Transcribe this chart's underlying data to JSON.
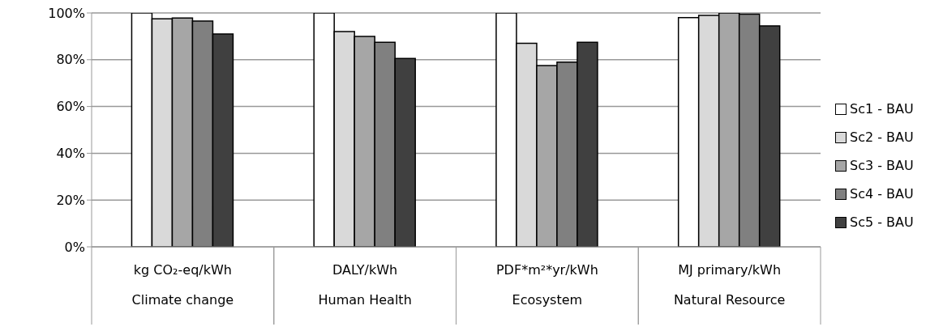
{
  "chart_data": {
    "type": "bar",
    "categories": [
      "kg CO₂-eq/kWh\nClimate change",
      "DALY/kWh\nHuman Health",
      "PDF*m²*yr/kWh\nEcosystem",
      "MJ primary/kWh\nNatural Resource"
    ],
    "series": [
      {
        "name": "Sc1 - BAU",
        "color": "#ffffff",
        "values": [
          100,
          100,
          100,
          98
        ]
      },
      {
        "name": "Sc2 - BAU",
        "color": "#d9d9d9",
        "values": [
          97.5,
          92,
          87,
          99
        ]
      },
      {
        "name": "Sc3 - BAU",
        "color": "#a6a6a6",
        "values": [
          97.8,
          90,
          77.5,
          100
        ]
      },
      {
        "name": "Sc4 - BAU",
        "color": "#808080",
        "values": [
          96.5,
          87.5,
          79,
          99.5
        ]
      },
      {
        "name": "Sc5 - BAU",
        "color": "#404040",
        "values": [
          91,
          80.5,
          87.5,
          94.5
        ]
      }
    ],
    "ylim": [
      0,
      100
    ],
    "yticks": [
      {
        "value": 0,
        "label": "0%"
      },
      {
        "value": 20,
        "label": "20%"
      },
      {
        "value": 40,
        "label": "40%"
      },
      {
        "value": 60,
        "label": "60%"
      },
      {
        "value": 80,
        "label": "80%"
      },
      {
        "value": 100,
        "label": "100%"
      }
    ],
    "grid": "y",
    "legend": "right"
  }
}
